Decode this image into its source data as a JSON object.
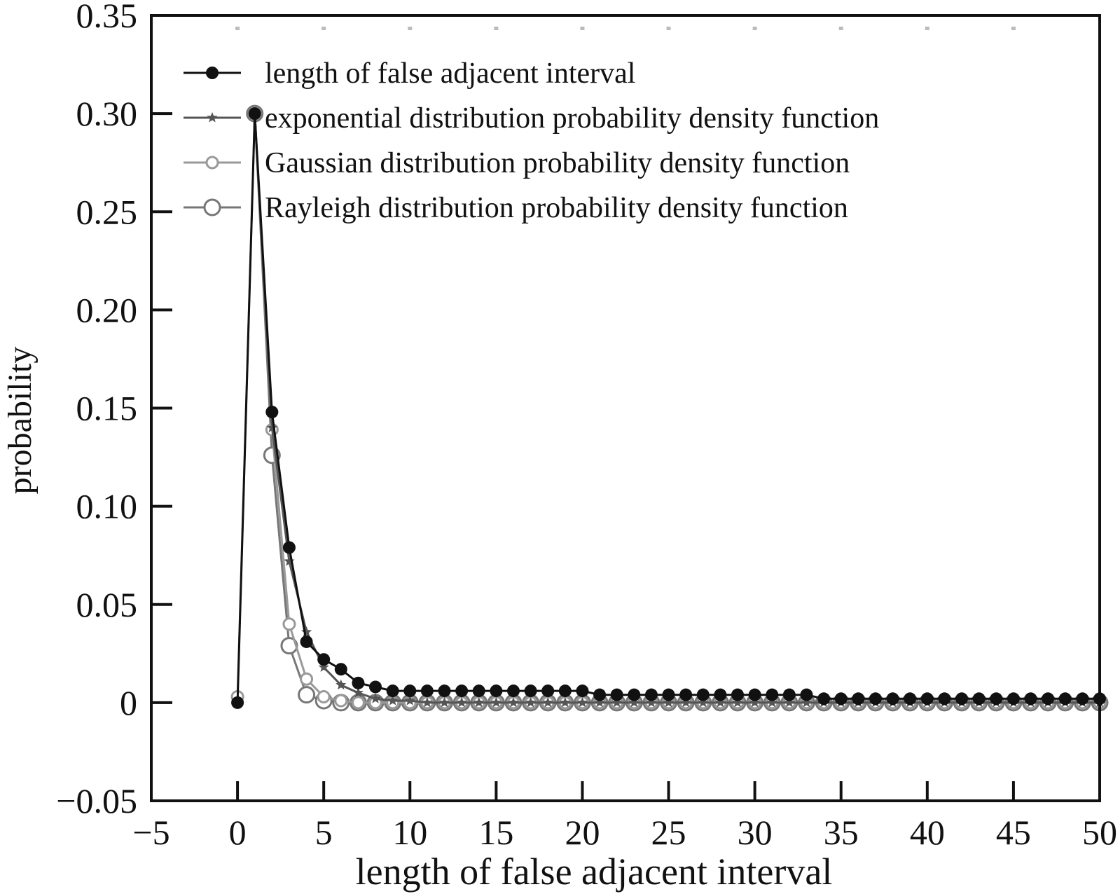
{
  "chart_data": {
    "type": "line",
    "xlabel": "length of false adjacent interval",
    "ylabel": "probability",
    "xlim": [
      -5,
      50
    ],
    "ylim": [
      -0.05,
      0.35
    ],
    "xticks": [
      -5,
      0,
      5,
      10,
      15,
      20,
      25,
      30,
      35,
      40,
      45,
      50
    ],
    "xtick_labels": [
      "−5",
      "0",
      "5",
      "10",
      "15",
      "20",
      "25",
      "30",
      "35",
      "40",
      "45",
      "50"
    ],
    "yticks": [
      -0.05,
      0,
      0.05,
      0.1,
      0.15,
      0.2,
      0.25,
      0.3,
      0.35
    ],
    "ytick_labels": [
      "−0.05",
      "0",
      "0.05",
      "0.10",
      "0.15",
      "0.20",
      "0.25",
      "0.30",
      "0.35"
    ],
    "grid": false,
    "legend_position": "top-left",
    "series": [
      {
        "name": "length of false adjacent interval",
        "marker": "filled-circle",
        "color": "#111111",
        "x": [
          0,
          1,
          2,
          3,
          4,
          5,
          6,
          7,
          8,
          9,
          10,
          11,
          12,
          13,
          14,
          15,
          16,
          17,
          18,
          19,
          20,
          21,
          22,
          23,
          24,
          25,
          26,
          27,
          28,
          29,
          30,
          31,
          32,
          33,
          34,
          35,
          36,
          37,
          38,
          39,
          40,
          41,
          42,
          43,
          44,
          45,
          46,
          47,
          48,
          49,
          50
        ],
        "y": [
          0,
          0.3,
          0.148,
          0.079,
          0.031,
          0.022,
          0.017,
          0.01,
          0.008,
          0.006,
          0.006,
          0.006,
          0.006,
          0.006,
          0.006,
          0.006,
          0.006,
          0.006,
          0.006,
          0.006,
          0.006,
          0.004,
          0.004,
          0.004,
          0.004,
          0.004,
          0.004,
          0.004,
          0.004,
          0.004,
          0.004,
          0.004,
          0.004,
          0.004,
          0.002,
          0.002,
          0.002,
          0.002,
          0.002,
          0.002,
          0.002,
          0.002,
          0.002,
          0.002,
          0.002,
          0.002,
          0.002,
          0.002,
          0.002,
          0.002,
          0.002
        ]
      },
      {
        "name": "exponential distribution probability density function",
        "marker": "star",
        "color": "#555555",
        "x": [
          1,
          2,
          3,
          4,
          5,
          6,
          7,
          8,
          9,
          10,
          11,
          12,
          13,
          14,
          15,
          16,
          17,
          18,
          19,
          20,
          21,
          22,
          23,
          24,
          25,
          26,
          27,
          28,
          29,
          30,
          31,
          32,
          33,
          34,
          35,
          36,
          37,
          38,
          39,
          40,
          41,
          42,
          43,
          44,
          45,
          46,
          47,
          48,
          49,
          50
        ],
        "y": [
          0.3,
          0.14,
          0.072,
          0.036,
          0.018,
          0.009,
          0.005,
          0.002,
          0.001,
          0.001,
          0,
          0,
          0,
          0,
          0,
          0,
          0,
          0,
          0,
          0,
          0,
          0,
          0,
          0,
          0,
          0,
          0,
          0,
          0,
          0,
          0,
          0,
          0,
          0,
          0,
          0,
          0,
          0,
          0,
          0,
          0,
          0,
          0,
          0,
          0,
          0,
          0,
          0,
          0,
          0
        ]
      },
      {
        "name": "Gaussian distribution probability density function",
        "marker": "open-circle",
        "color": "#999999",
        "x": [
          0,
          1,
          2,
          3,
          4,
          5,
          6,
          7,
          8,
          9,
          10,
          11,
          12,
          13,
          14,
          15,
          16,
          17,
          18,
          19,
          20,
          21,
          22,
          23,
          24,
          25,
          26,
          27,
          28,
          29,
          30,
          31,
          32,
          33,
          34,
          35,
          36,
          37,
          38,
          39,
          40,
          41,
          42,
          43,
          44,
          45,
          46,
          47,
          48,
          49,
          50
        ],
        "y": [
          0.003,
          0.3,
          0.139,
          0.04,
          0.012,
          0.003,
          0.001,
          0,
          0,
          0,
          0,
          0,
          0,
          0,
          0,
          0,
          0,
          0,
          0,
          0,
          0,
          0,
          0,
          0,
          0,
          0,
          0,
          0,
          0,
          0,
          0,
          0,
          0,
          0,
          0,
          0,
          0,
          0,
          0,
          0,
          0,
          0,
          0,
          0,
          0,
          0,
          0,
          0,
          0,
          0,
          0
        ]
      },
      {
        "name": "Rayleigh distribution probability density function",
        "marker": "open-circle-large",
        "color": "#777777",
        "x": [
          1,
          2,
          3,
          4,
          5,
          6,
          7,
          8,
          9,
          10,
          11,
          12,
          13,
          14,
          15,
          16,
          17,
          18,
          19,
          20,
          21,
          22,
          23,
          24,
          25,
          26,
          27,
          28,
          29,
          30,
          31,
          32,
          33,
          34,
          35,
          36,
          37,
          38,
          39,
          40,
          41,
          42,
          43,
          44,
          45,
          46,
          47,
          48,
          49,
          50
        ],
        "y": [
          0.3,
          0.126,
          0.029,
          0.004,
          0.001,
          0,
          0,
          0,
          0,
          0,
          0,
          0,
          0,
          0,
          0,
          0,
          0,
          0,
          0,
          0,
          0,
          0,
          0,
          0,
          0,
          0,
          0,
          0,
          0,
          0,
          0,
          0,
          0,
          0,
          0,
          0,
          0,
          0,
          0,
          0,
          0,
          0,
          0,
          0,
          0,
          0,
          0,
          0,
          0,
          0
        ]
      }
    ]
  }
}
